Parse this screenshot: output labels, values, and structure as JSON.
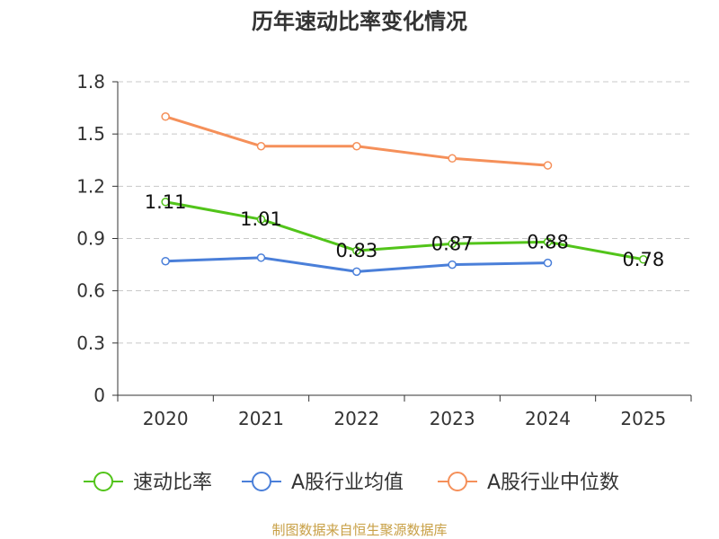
{
  "chart_data": {
    "type": "line",
    "title": "历年速动比率变化情况",
    "categories": [
      "2020",
      "2021",
      "2022",
      "2023",
      "2024",
      "2025"
    ],
    "y_ticks": [
      "0",
      "0.3",
      "0.6",
      "0.9",
      "1.2",
      "1.5",
      "1.8"
    ],
    "ylim": [
      0,
      1.8
    ],
    "grid": true,
    "legend_position": "bottom",
    "series": [
      {
        "name": "速动比率",
        "color": "#52c41a",
        "values": [
          1.11,
          1.01,
          0.83,
          0.87,
          0.88,
          0.78
        ],
        "labels": [
          "1.11",
          "1.01",
          "0.83",
          "0.87",
          "0.88",
          "0.78"
        ],
        "show_labels": true
      },
      {
        "name": "A股行业均值",
        "color": "#4a7fd9",
        "values": [
          0.77,
          0.79,
          0.71,
          0.75,
          0.76,
          null
        ],
        "show_labels": false
      },
      {
        "name": "A股行业中位数",
        "color": "#f5905a",
        "values": [
          1.6,
          1.43,
          1.43,
          1.36,
          1.32,
          null
        ],
        "show_labels": false
      }
    ]
  },
  "footer": {
    "source": "制图数据来自恒生聚源数据库"
  }
}
